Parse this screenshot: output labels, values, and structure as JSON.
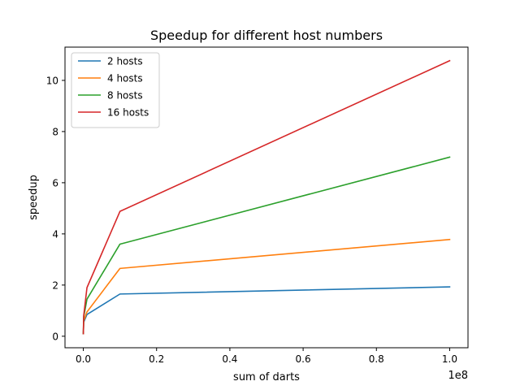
{
  "chart_data": {
    "type": "line",
    "title": "Speedup for different host numbers",
    "xlabel": "sum of darts",
    "ylabel": "speedup",
    "x_offset_label": "1e8",
    "xlim": [
      -5000000,
      105000000
    ],
    "ylim": [
      -0.45,
      11.3
    ],
    "x_ticks": [
      0,
      20000000,
      40000000,
      60000000,
      80000000,
      100000000
    ],
    "x_tick_labels": [
      "0.0",
      "0.2",
      "0.4",
      "0.6",
      "0.8",
      "1.0"
    ],
    "y_ticks": [
      0,
      2,
      4,
      6,
      8,
      10
    ],
    "y_tick_labels": [
      "0",
      "2",
      "4",
      "6",
      "8",
      "10"
    ],
    "grid": false,
    "legend_position": "upper-left",
    "x": [
      10000,
      100000,
      1000000,
      10000000,
      100000000
    ],
    "series": [
      {
        "name": "2 hosts",
        "color": "#1f77b4",
        "values": [
          0.1,
          0.55,
          0.85,
          1.65,
          1.93
        ]
      },
      {
        "name": "4 hosts",
        "color": "#ff7f0e",
        "values": [
          0.1,
          0.6,
          0.95,
          2.65,
          3.78
        ]
      },
      {
        "name": "8 hosts",
        "color": "#2ca02c",
        "values": [
          0.1,
          0.75,
          1.45,
          3.6,
          7.0
        ]
      },
      {
        "name": "16 hosts",
        "color": "#d62728",
        "values": [
          0.1,
          0.8,
          1.9,
          4.88,
          10.77
        ]
      }
    ]
  }
}
